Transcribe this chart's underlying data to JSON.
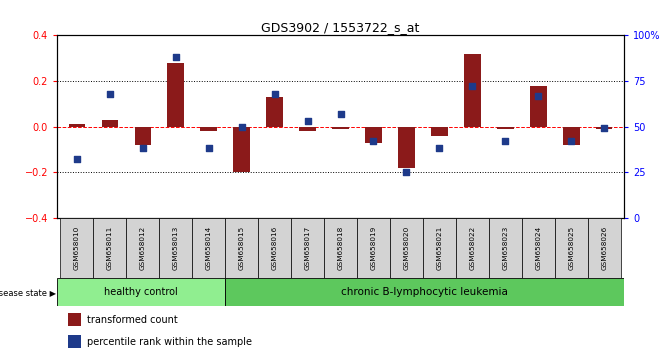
{
  "title": "GDS3902 / 1553722_s_at",
  "samples": [
    "GSM658010",
    "GSM658011",
    "GSM658012",
    "GSM658013",
    "GSM658014",
    "GSM658015",
    "GSM658016",
    "GSM658017",
    "GSM658018",
    "GSM658019",
    "GSM658020",
    "GSM658021",
    "GSM658022",
    "GSM658023",
    "GSM658024",
    "GSM658025",
    "GSM658026"
  ],
  "red_values": [
    0.01,
    0.03,
    -0.08,
    0.28,
    -0.02,
    -0.2,
    0.13,
    -0.02,
    -0.01,
    -0.07,
    -0.18,
    -0.04,
    0.32,
    -0.01,
    0.18,
    -0.08,
    -0.01
  ],
  "blue_values": [
    32,
    68,
    38,
    88,
    38,
    50,
    68,
    53,
    57,
    42,
    25,
    38,
    72,
    42,
    67,
    42,
    49
  ],
  "healthy_count": 5,
  "group1_label": "healthy control",
  "group2_label": "chronic B-lymphocytic leukemia",
  "disease_state_label": "disease state",
  "legend_red": "transformed count",
  "legend_blue": "percentile rank within the sample",
  "left_ylim": [
    -0.4,
    0.4
  ],
  "right_ylim": [
    0,
    100
  ],
  "left_yticks": [
    -0.4,
    -0.2,
    0.0,
    0.2,
    0.4
  ],
  "right_yticks": [
    0,
    25,
    50,
    75,
    100
  ],
  "right_yticklabels": [
    "0",
    "25",
    "50",
    "75",
    "100%"
  ],
  "bar_color": "#8B1A1A",
  "square_color": "#1E3A8A",
  "healthy_bg": "#90EE90",
  "leukemia_bg": "#5DC85D"
}
